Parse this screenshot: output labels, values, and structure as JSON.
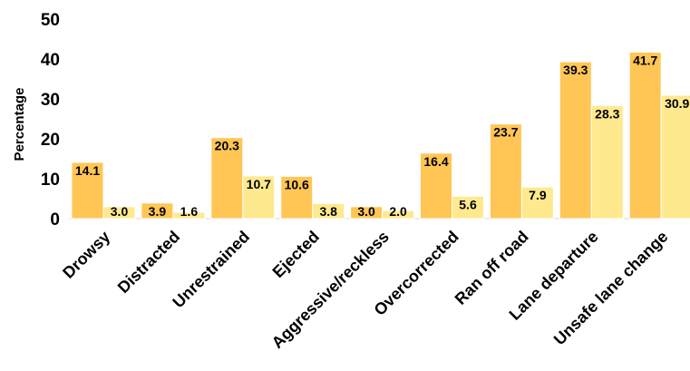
{
  "chart_data": {
    "type": "bar",
    "ylabel": "Percentage",
    "xlabel": "",
    "ylim": [
      0,
      50
    ],
    "yticks": [
      "0",
      "10",
      "20",
      "30",
      "40",
      "50"
    ],
    "grid": false,
    "legend": "none",
    "categories": [
      "Drowsy",
      "Distracted",
      "Unrestrained",
      "Ejected",
      "Aggressive/reckless",
      "Overcorrected",
      "Ran off road",
      "Lane departure",
      "Unsafe lane change"
    ],
    "series": [
      {
        "values": [
          14.1,
          3.9,
          20.3,
          10.6,
          3.0,
          16.4,
          23.7,
          39.3,
          41.7
        ],
        "labels": [
          "14.1",
          "3.9",
          "20.3",
          "10.6",
          "3.0",
          "16.4",
          "23.7",
          "39.3",
          "41.7"
        ],
        "color": "#FFC655"
      },
      {
        "values": [
          3.0,
          1.6,
          10.7,
          3.8,
          2.0,
          5.6,
          7.9,
          28.3,
          30.9
        ],
        "labels": [
          "3.0",
          "1.6",
          "10.7",
          "3.8",
          "2.0",
          "5.6",
          "7.9",
          "28.3",
          "30.9"
        ],
        "color": "#FFE98F"
      }
    ]
  }
}
